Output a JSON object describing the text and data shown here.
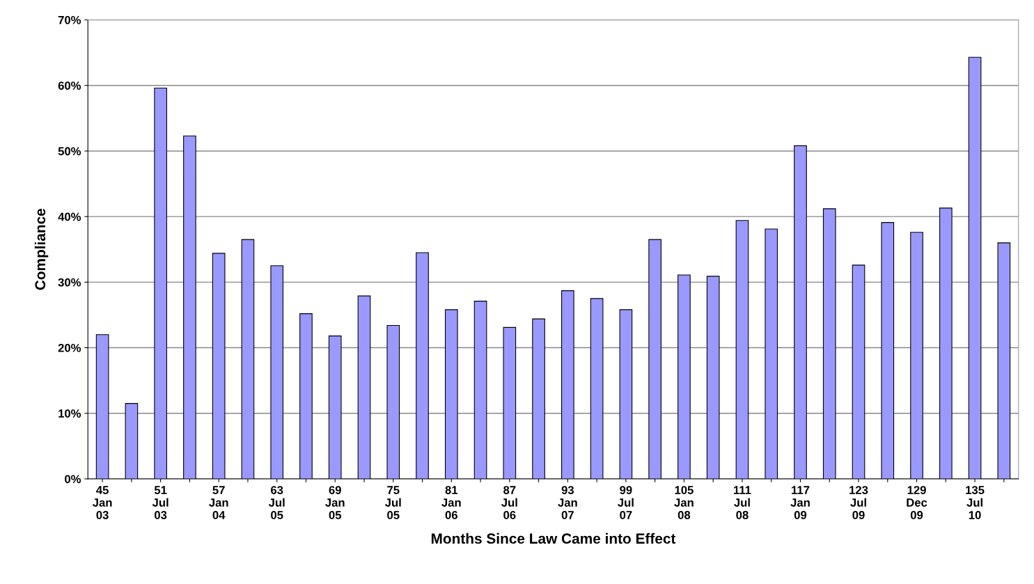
{
  "chart_data": {
    "type": "bar",
    "xlabel": "Months Since Law Came into Effect",
    "ylabel": "Compliance",
    "categories": [
      "45\nJan\n03",
      null,
      "51\nJul\n03",
      null,
      "57\nJan\n04",
      null,
      "63\nJul\n05",
      null,
      "69\nJan\n05",
      null,
      "75\nJul\n05",
      null,
      "81\nJan\n06",
      null,
      "87\nJul\n06",
      null,
      "93\nJan\n07",
      null,
      "99\nJul\n07",
      null,
      "105\nJan\n08",
      null,
      "111\nJul\n08",
      null,
      "117\nJan\n09",
      null,
      "123\nJul\n09",
      null,
      "129\nDec\n09",
      null,
      "135\nJul\n10",
      null
    ],
    "values": [
      22,
      11.5,
      59.6,
      52.3,
      34.4,
      36.5,
      32.5,
      25.2,
      21.8,
      27.9,
      23.4,
      34.5,
      25.8,
      27.1,
      23.1,
      24.4,
      28.7,
      27.5,
      25.8,
      36.5,
      31.1,
      30.9,
      39.4,
      38.1,
      50.8,
      41.2,
      32.6,
      39.1,
      37.6,
      41.3,
      64.3,
      36.0
    ],
    "color": "#9999ff",
    "ylim": [
      0,
      70
    ],
    "yticks": [
      {
        "value": 0,
        "label": "0%"
      },
      {
        "value": 10,
        "label": "10%"
      },
      {
        "value": 20,
        "label": "20%"
      },
      {
        "value": 30,
        "label": "30%"
      },
      {
        "value": 40,
        "label": "40%"
      },
      {
        "value": 50,
        "label": "50%"
      },
      {
        "value": 60,
        "label": "60%"
      },
      {
        "value": 70,
        "label": "70%"
      }
    ],
    "grid": "y",
    "legend": false
  }
}
